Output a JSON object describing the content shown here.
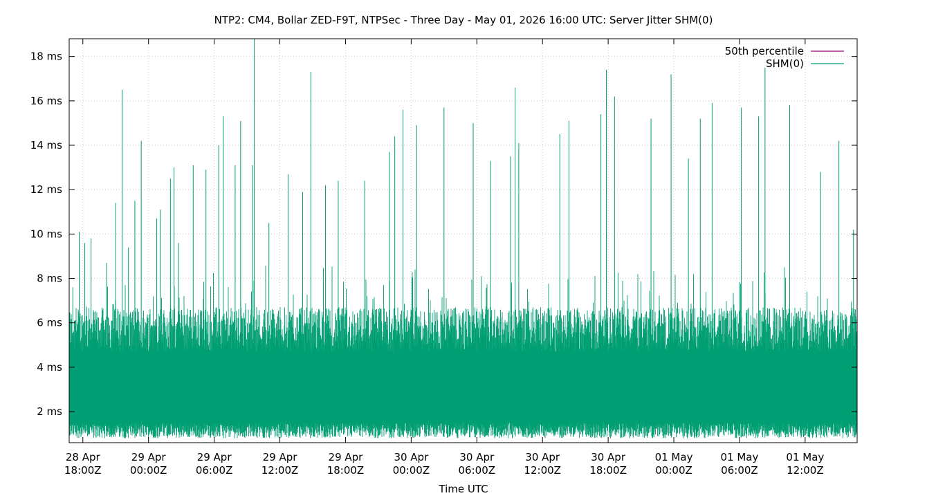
{
  "chart_data": {
    "type": "line",
    "title": "NTP2: CM4, Bollar ZED-F9T, NTPSec - Three Day - May 01, 2026 16:00 UTC: Server Jitter SHM(0)",
    "xlabel": "Time UTC",
    "ylabel": "",
    "x_range": [
      "2026-04-28T16:45Z",
      "2026-05-01T16:45Z"
    ],
    "ylim": [
      0.6,
      18.8
    ],
    "y_unit": "ms",
    "grid": true,
    "legend_position": "top-right",
    "y_ticks": [
      {
        "value": 2,
        "label": "2 ms"
      },
      {
        "value": 4,
        "label": "4 ms"
      },
      {
        "value": 6,
        "label": "6 ms"
      },
      {
        "value": 8,
        "label": "8 ms"
      },
      {
        "value": 10,
        "label": "10 ms"
      },
      {
        "value": 12,
        "label": "12 ms"
      },
      {
        "value": 14,
        "label": "14 ms"
      },
      {
        "value": 16,
        "label": "16 ms"
      },
      {
        "value": 18,
        "label": "18 ms"
      }
    ],
    "x_ticks": [
      {
        "value": "2026-04-28T18:00Z",
        "line1": "28 Apr",
        "line2": "18:00Z"
      },
      {
        "value": "2026-04-29T00:00Z",
        "line1": "29 Apr",
        "line2": "00:00Z"
      },
      {
        "value": "2026-04-29T06:00Z",
        "line1": "29 Apr",
        "line2": "06:00Z"
      },
      {
        "value": "2026-04-29T12:00Z",
        "line1": "29 Apr",
        "line2": "12:00Z"
      },
      {
        "value": "2026-04-29T18:00Z",
        "line1": "29 Apr",
        "line2": "18:00Z"
      },
      {
        "value": "2026-04-30T00:00Z",
        "line1": "30 Apr",
        "line2": "00:00Z"
      },
      {
        "value": "2026-04-30T06:00Z",
        "line1": "30 Apr",
        "line2": "06:00Z"
      },
      {
        "value": "2026-04-30T12:00Z",
        "line1": "30 Apr",
        "line2": "12:00Z"
      },
      {
        "value": "2026-04-30T18:00Z",
        "line1": "30 Apr",
        "line2": "18:00Z"
      },
      {
        "value": "2026-05-01T00:00Z",
        "line1": "01 May",
        "line2": "00:00Z"
      },
      {
        "value": "2026-05-01T06:00Z",
        "line1": "01 May",
        "line2": "06:00Z"
      },
      {
        "value": "2026-05-01T12:00Z",
        "line1": "01 May",
        "line2": "12:00Z"
      }
    ],
    "series": [
      {
        "name": "50th percentile",
        "color": "#94017a",
        "note_visible": false,
        "values": []
      },
      {
        "name": "SHM(0)",
        "color": "#009e73",
        "typical_low_ms": 1.0,
        "typical_high_ms": 6.5,
        "spikes": [
          {
            "x": "2026-04-28T17:05Z",
            "y": 7.6
          },
          {
            "x": "2026-04-28T17:40Z",
            "y": 10.1
          },
          {
            "x": "2026-04-28T18:10Z",
            "y": 9.6
          },
          {
            "x": "2026-04-28T18:45Z",
            "y": 9.8
          },
          {
            "x": "2026-04-28T20:10Z",
            "y": 8.7
          },
          {
            "x": "2026-04-28T21:00Z",
            "y": 11.4
          },
          {
            "x": "2026-04-28T21:35Z",
            "y": 16.5
          },
          {
            "x": "2026-04-28T22:10Z",
            "y": 9.4
          },
          {
            "x": "2026-04-28T22:45Z",
            "y": 11.5
          },
          {
            "x": "2026-04-28T23:20Z",
            "y": 14.2
          },
          {
            "x": "2026-04-29T00:45Z",
            "y": 10.7
          },
          {
            "x": "2026-04-29T01:05Z",
            "y": 11.1
          },
          {
            "x": "2026-04-29T02:00Z",
            "y": 12.5
          },
          {
            "x": "2026-04-29T02:20Z",
            "y": 13.0
          },
          {
            "x": "2026-04-29T02:45Z",
            "y": 9.6
          },
          {
            "x": "2026-04-29T04:05Z",
            "y": 13.1
          },
          {
            "x": "2026-04-29T05:15Z",
            "y": 12.9
          },
          {
            "x": "2026-04-29T06:25Z",
            "y": 14.0
          },
          {
            "x": "2026-04-29T06:50Z",
            "y": 15.3
          },
          {
            "x": "2026-04-29T07:55Z",
            "y": 13.1
          },
          {
            "x": "2026-04-29T08:25Z",
            "y": 15.1
          },
          {
            "x": "2026-04-29T09:30Z",
            "y": 13.1
          },
          {
            "x": "2026-04-29T09:40Z",
            "y": 18.8
          },
          {
            "x": "2026-04-29T11:00Z",
            "y": 10.5
          },
          {
            "x": "2026-04-29T12:45Z",
            "y": 12.7
          },
          {
            "x": "2026-04-29T14:05Z",
            "y": 11.9
          },
          {
            "x": "2026-04-29T14:50Z",
            "y": 17.3
          },
          {
            "x": "2026-04-29T16:10Z",
            "y": 12.2
          },
          {
            "x": "2026-04-29T17:20Z",
            "y": 12.4
          },
          {
            "x": "2026-04-29T19:45Z",
            "y": 12.4
          },
          {
            "x": "2026-04-29T22:00Z",
            "y": 13.7
          },
          {
            "x": "2026-04-29T22:30Z",
            "y": 14.4
          },
          {
            "x": "2026-04-29T23:15Z",
            "y": 15.6
          },
          {
            "x": "2026-04-30T00:30Z",
            "y": 14.9
          },
          {
            "x": "2026-04-30T03:00Z",
            "y": 15.7
          },
          {
            "x": "2026-04-30T05:40Z",
            "y": 15.0
          },
          {
            "x": "2026-04-30T07:15Z",
            "y": 13.3
          },
          {
            "x": "2026-04-30T09:05Z",
            "y": 13.5
          },
          {
            "x": "2026-04-30T09:30Z",
            "y": 16.6
          },
          {
            "x": "2026-04-30T09:50Z",
            "y": 14.1
          },
          {
            "x": "2026-04-30T13:35Z",
            "y": 14.5
          },
          {
            "x": "2026-04-30T14:25Z",
            "y": 15.1
          },
          {
            "x": "2026-04-30T17:20Z",
            "y": 15.4
          },
          {
            "x": "2026-04-30T17:50Z",
            "y": 17.4
          },
          {
            "x": "2026-04-30T18:35Z",
            "y": 16.2
          },
          {
            "x": "2026-04-30T21:55Z",
            "y": 15.2
          },
          {
            "x": "2026-04-30T23:45Z",
            "y": 17.2
          },
          {
            "x": "2026-05-01T01:20Z",
            "y": 13.4
          },
          {
            "x": "2026-05-01T02:25Z",
            "y": 15.2
          },
          {
            "x": "2026-05-01T03:30Z",
            "y": 15.9
          },
          {
            "x": "2026-05-01T06:10Z",
            "y": 15.7
          },
          {
            "x": "2026-05-01T07:45Z",
            "y": 15.3
          },
          {
            "x": "2026-05-01T08:20Z",
            "y": 17.5
          },
          {
            "x": "2026-05-01T10:35Z",
            "y": 15.8
          },
          {
            "x": "2026-05-01T13:25Z",
            "y": 12.8
          },
          {
            "x": "2026-05-01T15:05Z",
            "y": 14.2
          },
          {
            "x": "2026-05-01T16:25Z",
            "y": 10.2
          }
        ]
      }
    ]
  }
}
